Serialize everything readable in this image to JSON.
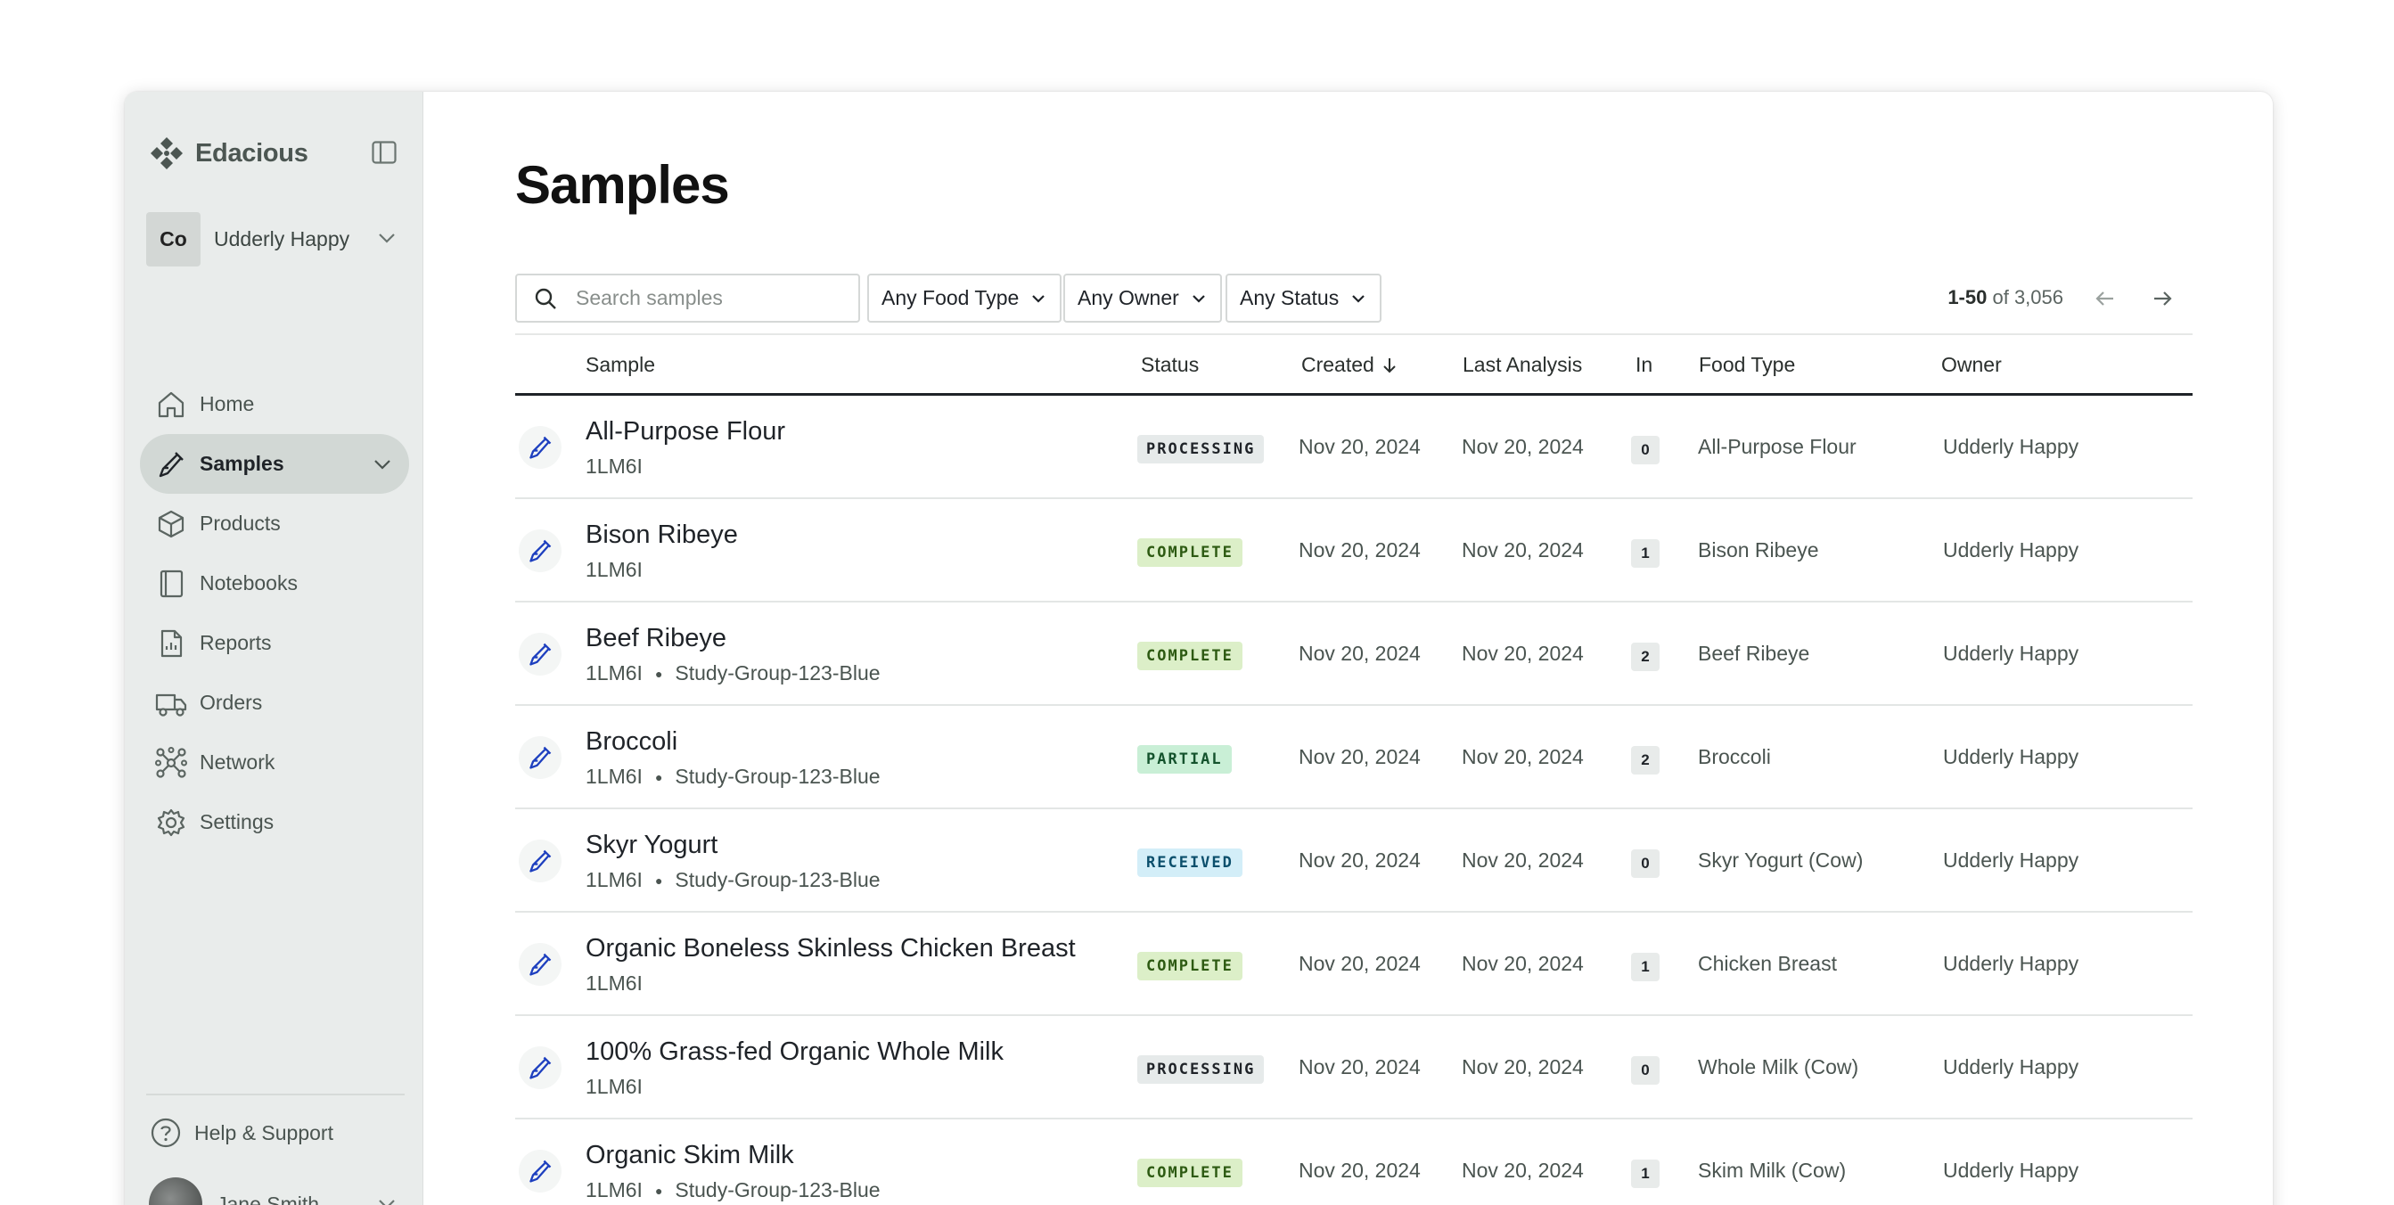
{
  "brand": {
    "name": "Edacious"
  },
  "org": {
    "initials": "Co",
    "name": "Udderly Happy"
  },
  "nav": [
    {
      "label": "Home",
      "icon": "home-icon"
    },
    {
      "label": "Samples",
      "icon": "sample-icon"
    },
    {
      "label": "Products",
      "icon": "box-icon"
    },
    {
      "label": "Notebooks",
      "icon": "notebook-icon"
    },
    {
      "label": "Reports",
      "icon": "report-icon"
    },
    {
      "label": "Orders",
      "icon": "truck-icon"
    },
    {
      "label": "Network",
      "icon": "network-icon"
    },
    {
      "label": "Settings",
      "icon": "gear-icon"
    }
  ],
  "help": {
    "label": "Help & Support"
  },
  "user": {
    "name": "Jane Smith"
  },
  "page": {
    "title": "Samples"
  },
  "search": {
    "placeholder": "Search samples"
  },
  "filters": {
    "food_type": "Any Food Type",
    "owner": "Any Owner",
    "status": "Any Status"
  },
  "pager": {
    "range": "1-50",
    "of": "of 3,056"
  },
  "table": {
    "headers": {
      "sample": "Sample",
      "status": "Status",
      "created": "Created",
      "last_analysis": "Last Analysis",
      "in": "In",
      "food_type": "Food Type",
      "owner": "Owner"
    },
    "rows": [
      {
        "name": "All-Purpose Flour",
        "id": "1LM6I",
        "group": "",
        "status": "PROCESSING",
        "created": "Nov 20, 2024",
        "last_analysis": "Nov 20, 2024",
        "in": "0",
        "food_type": "All-Purpose Flour",
        "owner": "Udderly Happy"
      },
      {
        "name": "Bison Ribeye",
        "id": "1LM6I",
        "group": "",
        "status": "COMPLETE",
        "created": "Nov 20, 2024",
        "last_analysis": "Nov 20, 2024",
        "in": "1",
        "food_type": "Bison Ribeye",
        "owner": "Udderly Happy"
      },
      {
        "name": "Beef Ribeye",
        "id": "1LM6I",
        "group": "Study-Group-123-Blue",
        "status": "COMPLETE",
        "created": "Nov 20, 2024",
        "last_analysis": "Nov 20, 2024",
        "in": "2",
        "food_type": "Beef Ribeye",
        "owner": "Udderly Happy"
      },
      {
        "name": "Broccoli",
        "id": "1LM6I",
        "group": "Study-Group-123-Blue",
        "status": "PARTIAL",
        "created": "Nov 20, 2024",
        "last_analysis": "Nov 20, 2024",
        "in": "2",
        "food_type": "Broccoli",
        "owner": "Udderly Happy"
      },
      {
        "name": "Skyr Yogurt",
        "id": "1LM6I",
        "group": "Study-Group-123-Blue",
        "status": "RECEIVED",
        "created": "Nov 20, 2024",
        "last_analysis": "Nov 20, 2024",
        "in": "0",
        "food_type": "Skyr Yogurt (Cow)",
        "owner": "Udderly Happy"
      },
      {
        "name": "Organic Boneless Skinless Chicken Breast",
        "id": "1LM6I",
        "group": "",
        "status": "COMPLETE",
        "created": "Nov 20, 2024",
        "last_analysis": "Nov 20, 2024",
        "in": "1",
        "food_type": "Chicken Breast",
        "owner": "Udderly Happy"
      },
      {
        "name": "100% Grass-fed Organic Whole Milk",
        "id": "1LM6I",
        "group": "",
        "status": "PROCESSING",
        "created": "Nov 20, 2024",
        "last_analysis": "Nov 20, 2024",
        "in": "0",
        "food_type": "Whole Milk (Cow)",
        "owner": "Udderly Happy"
      },
      {
        "name": "Organic Skim Milk",
        "id": "1LM6I",
        "group": "Study-Group-123-Blue",
        "status": "COMPLETE",
        "created": "Nov 20, 2024",
        "last_analysis": "Nov 20, 2024",
        "in": "1",
        "food_type": "Skim Milk (Cow)",
        "owner": "Udderly Happy"
      }
    ]
  },
  "status_colors": {
    "PROCESSING": {
      "bg": "#e6eaea",
      "fg": "#1f2328"
    },
    "COMPLETE": {
      "bg": "#dcefc8",
      "fg": "#2d5a12"
    },
    "PARTIAL": {
      "bg": "#c9efd6",
      "fg": "#14532d"
    },
    "RECEIVED": {
      "bg": "#d3eef8",
      "fg": "#0b4f6c"
    }
  },
  "colors": {
    "accent": "#1d3fbf",
    "sidebar_bg": "#e9eceb",
    "active_nav": "#d2d8d5"
  }
}
